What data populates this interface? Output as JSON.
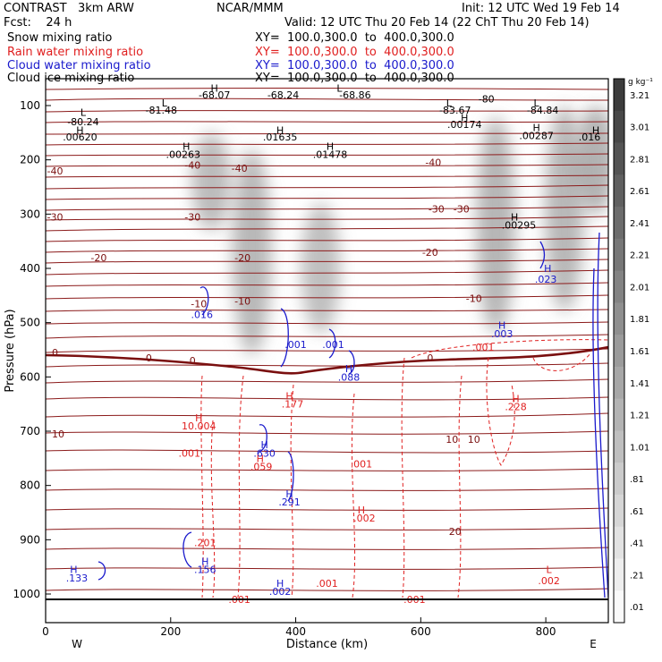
{
  "header": {
    "model": "CONTRAST   3km ARW",
    "org": "NCAR/MMM",
    "init": "Init: 12 UTC Wed 19 Feb 14",
    "fcst": "Fcst:    24 h",
    "valid": "Valid: 12 UTC Thu 20 Feb 14 (22 ChT Thu 20 Feb 14)",
    "fields": [
      {
        "label": "Snow mixing ratio",
        "xy": "XY=  100.0,300.0  to  400.0,300.0",
        "color": "#000000"
      },
      {
        "label": "Rain water mixing ratio",
        "xy": "XY=  100.0,300.0  to  400.0,300.0",
        "color": "#e02020"
      },
      {
        "label": "Cloud water mixing ratio",
        "xy": "XY=  100.0,300.0  to  400.0,300.0",
        "color": "#1a1acc"
      },
      {
        "label": "Cloud ice mixing ratio",
        "xy": "XY=  100.0,300.0  to  400.0,300.0",
        "color": "#000000"
      }
    ]
  },
  "chart_data": {
    "type": "heatmap",
    "xlabel": "Distance (km)",
    "ylabel": "Pressure (hPa)",
    "xlim": [
      0,
      900
    ],
    "ylim": [
      1050,
      50
    ],
    "x_ticks": [
      "0",
      "200",
      "400",
      "600",
      "800"
    ],
    "x_tick_values": [
      0,
      200,
      400,
      600,
      800
    ],
    "y_ticks": [
      "100",
      "200",
      "300",
      "400",
      "500",
      "600",
      "700",
      "800",
      "900",
      "1000"
    ],
    "y_tick_values": [
      100,
      200,
      300,
      400,
      500,
      600,
      700,
      800,
      900,
      1000
    ],
    "x_end_labels": {
      "left": "W",
      "right": "E"
    },
    "colorbar": {
      "unit": "g kg⁻¹",
      "labels": [
        "3.21",
        "3.01",
        "2.81",
        "2.61",
        "2.41",
        "2.21",
        "2.01",
        "1.81",
        "1.61",
        "1.41",
        "1.21",
        "1.01",
        ".81",
        ".61",
        ".41",
        ".21",
        ".01"
      ],
      "values": [
        3.21,
        3.01,
        2.81,
        2.61,
        2.41,
        2.21,
        2.01,
        1.81,
        1.61,
        1.41,
        1.21,
        1.01,
        0.81,
        0.61,
        0.41,
        0.21,
        0.01
      ]
    },
    "shading_series": "Snow mixing ratio",
    "snow_columns": [
      {
        "x": 265,
        "p_top": 150,
        "p_bottom": 330,
        "intensity": 0.45
      },
      {
        "x": 330,
        "p_top": 180,
        "p_bottom": 560,
        "intensity": 0.55
      },
      {
        "x": 440,
        "p_top": 280,
        "p_bottom": 520,
        "intensity": 0.35
      },
      {
        "x": 720,
        "p_top": 120,
        "p_bottom": 520,
        "intensity": 0.6
      },
      {
        "x": 830,
        "p_top": 100,
        "p_bottom": 480,
        "intensity": 0.55
      },
      {
        "x": 880,
        "p_top": 100,
        "p_bottom": 300,
        "intensity": 0.7
      }
    ],
    "temperature_labels": [
      {
        "x": 15,
        "p": 220,
        "text": "-40"
      },
      {
        "x": 235,
        "p": 210,
        "text": "-40"
      },
      {
        "x": 310,
        "p": 215,
        "text": "-40"
      },
      {
        "x": 620,
        "p": 205,
        "text": "-40"
      },
      {
        "x": 15,
        "p": 305,
        "text": "-30"
      },
      {
        "x": 235,
        "p": 305,
        "text": "-30"
      },
      {
        "x": 625,
        "p": 290,
        "text": "-30"
      },
      {
        "x": 665,
        "p": 290,
        "text": "-30"
      },
      {
        "x": 85,
        "p": 380,
        "text": "-20"
      },
      {
        "x": 615,
        "p": 370,
        "text": "-20"
      },
      {
        "x": 315,
        "p": 380,
        "text": "-20"
      },
      {
        "x": 245,
        "p": 465,
        "text": "-10"
      },
      {
        "x": 315,
        "p": 460,
        "text": "-10"
      },
      {
        "x": 685,
        "p": 455,
        "text": "-10"
      },
      {
        "x": 15,
        "p": 555,
        "text": "0"
      },
      {
        "x": 165,
        "p": 565,
        "text": "0"
      },
      {
        "x": 235,
        "p": 570,
        "text": "0"
      },
      {
        "x": 615,
        "p": 565,
        "text": "0"
      },
      {
        "x": 20,
        "p": 705,
        "text": "10"
      },
      {
        "x": 650,
        "p": 715,
        "text": "10"
      },
      {
        "x": 685,
        "p": 715,
        "text": "10"
      },
      {
        "x": 655,
        "p": 885,
        "text": "20"
      }
    ],
    "snow_labels": [
      {
        "x": 60,
        "p": 130,
        "text": "-80.24",
        "color": "#000000"
      },
      {
        "x": 185,
        "p": 108,
        "text": "-81.48",
        "color": "#000000"
      },
      {
        "x": 270,
        "p": 80,
        "text": "-68.07",
        "color": "#000000"
      },
      {
        "x": 380,
        "p": 80,
        "text": "-68.24",
        "color": "#000000"
      },
      {
        "x": 495,
        "p": 80,
        "text": "-68.86",
        "color": "#000000"
      },
      {
        "x": 655,
        "p": 108,
        "text": "-83.67",
        "color": "#000000"
      },
      {
        "x": 795,
        "p": 108,
        "text": "-84.84",
        "color": "#000000"
      },
      {
        "x": 705,
        "p": 88,
        "text": "-80",
        "color": "#000000"
      },
      {
        "x": 55,
        "p": 158,
        "text": ".00620",
        "color": "#000000"
      },
      {
        "x": 220,
        "p": 190,
        "text": ".00263",
        "color": "#000000"
      },
      {
        "x": 375,
        "p": 158,
        "text": ".01635",
        "color": "#000000"
      },
      {
        "x": 455,
        "p": 190,
        "text": ".01478",
        "color": "#000000"
      },
      {
        "x": 670,
        "p": 135,
        "text": ".00174",
        "color": "#000000"
      },
      {
        "x": 785,
        "p": 155,
        "text": ".00287",
        "color": "#000000"
      },
      {
        "x": 870,
        "p": 158,
        "text": ".016",
        "color": "#000000"
      },
      {
        "x": 757,
        "p": 320,
        "text": ".00295",
        "color": "#000000"
      },
      {
        "x": 250,
        "p": 485,
        "text": ".016",
        "color": "#1a1acc"
      },
      {
        "x": 400,
        "p": 540,
        "text": ".001",
        "color": "#1a1acc"
      },
      {
        "x": 460,
        "p": 540,
        "text": ".001",
        "color": "#1a1acc"
      },
      {
        "x": 485,
        "p": 600,
        "text": ".088",
        "color": "#1a1acc"
      },
      {
        "x": 730,
        "p": 520,
        "text": ".003",
        "color": "#1a1acc"
      },
      {
        "x": 800,
        "p": 420,
        "text": ".023",
        "color": "#1a1acc"
      },
      {
        "x": 700,
        "p": 545,
        "text": ".001",
        "color": "#e02020"
      },
      {
        "x": 395,
        "p": 650,
        "text": ".177",
        "color": "#e02020"
      },
      {
        "x": 752,
        "p": 655,
        "text": ".228",
        "color": "#e02020"
      },
      {
        "x": 245,
        "p": 690,
        "text": "10.004",
        "color": "#e02020"
      },
      {
        "x": 230,
        "p": 740,
        "text": ".001",
        "color": "#e02020"
      },
      {
        "x": 350,
        "p": 740,
        "text": ".630",
        "color": "#1a1acc"
      },
      {
        "x": 345,
        "p": 765,
        "text": ".059",
        "color": "#e02020"
      },
      {
        "x": 505,
        "p": 760,
        "text": ".001",
        "color": "#e02020"
      },
      {
        "x": 390,
        "p": 830,
        "text": ".291",
        "color": "#1a1acc"
      },
      {
        "x": 510,
        "p": 860,
        "text": ".002",
        "color": "#e02020"
      },
      {
        "x": 255,
        "p": 905,
        "text": ".201",
        "color": "#e02020"
      },
      {
        "x": 255,
        "p": 955,
        "text": ".156",
        "color": "#1a1acc"
      },
      {
        "x": 50,
        "p": 970,
        "text": ".133",
        "color": "#1a1acc"
      },
      {
        "x": 375,
        "p": 995,
        "text": ".002",
        "color": "#1a1acc"
      },
      {
        "x": 450,
        "p": 980,
        "text": ".001",
        "color": "#e02020"
      },
      {
        "x": 310,
        "p": 1010,
        "text": ".001",
        "color": "#e02020"
      },
      {
        "x": 590,
        "p": 1010,
        "text": ".001",
        "color": "#e02020"
      },
      {
        "x": 805,
        "p": 975,
        "text": ".002",
        "color": "#e02020"
      }
    ],
    "extrema_markers": [
      {
        "x": 55,
        "p": 145,
        "text": "H",
        "color": "#000000"
      },
      {
        "x": 60,
        "p": 112,
        "text": "L",
        "color": "#000000"
      },
      {
        "x": 190,
        "p": 95,
        "text": "L",
        "color": "#000000"
      },
      {
        "x": 270,
        "p": 68,
        "text": "H",
        "color": "#000000"
      },
      {
        "x": 470,
        "p": 68,
        "text": "L",
        "color": "#000000"
      },
      {
        "x": 225,
        "p": 175,
        "text": "H",
        "color": "#000000"
      },
      {
        "x": 375,
        "p": 145,
        "text": "H",
        "color": "#000000"
      },
      {
        "x": 455,
        "p": 175,
        "text": "H",
        "color": "#000000"
      },
      {
        "x": 645,
        "p": 95,
        "text": "L",
        "color": "#000000"
      },
      {
        "x": 670,
        "p": 122,
        "text": "H",
        "color": "#000000"
      },
      {
        "x": 785,
        "p": 95,
        "text": "L",
        "color": "#000000"
      },
      {
        "x": 785,
        "p": 140,
        "text": "H",
        "color": "#000000"
      },
      {
        "x": 880,
        "p": 145,
        "text": "H",
        "color": "#000000"
      },
      {
        "x": 750,
        "p": 305,
        "text": "H",
        "color": "#000000"
      },
      {
        "x": 803,
        "p": 400,
        "text": "H",
        "color": "#1a1acc"
      },
      {
        "x": 730,
        "p": 505,
        "text": "H",
        "color": "#1a1acc"
      },
      {
        "x": 485,
        "p": 585,
        "text": "H",
        "color": "#1a1acc"
      },
      {
        "x": 390,
        "p": 635,
        "text": "H",
        "color": "#e02020"
      },
      {
        "x": 752,
        "p": 640,
        "text": "H",
        "color": "#e02020"
      },
      {
        "x": 245,
        "p": 675,
        "text": "H",
        "color": "#e02020"
      },
      {
        "x": 350,
        "p": 725,
        "text": "H",
        "color": "#1a1acc"
      },
      {
        "x": 343,
        "p": 750,
        "text": "H",
        "color": "#e02020"
      },
      {
        "x": 390,
        "p": 815,
        "text": "H",
        "color": "#1a1acc"
      },
      {
        "x": 505,
        "p": 845,
        "text": "H",
        "color": "#e02020"
      },
      {
        "x": 255,
        "p": 940,
        "text": "H",
        "color": "#1a1acc"
      },
      {
        "x": 45,
        "p": 955,
        "text": "H",
        "color": "#1a1acc"
      },
      {
        "x": 375,
        "p": 980,
        "text": "H",
        "color": "#1a1acc"
      },
      {
        "x": 805,
        "p": 955,
        "text": "L",
        "color": "#e02020"
      }
    ]
  }
}
